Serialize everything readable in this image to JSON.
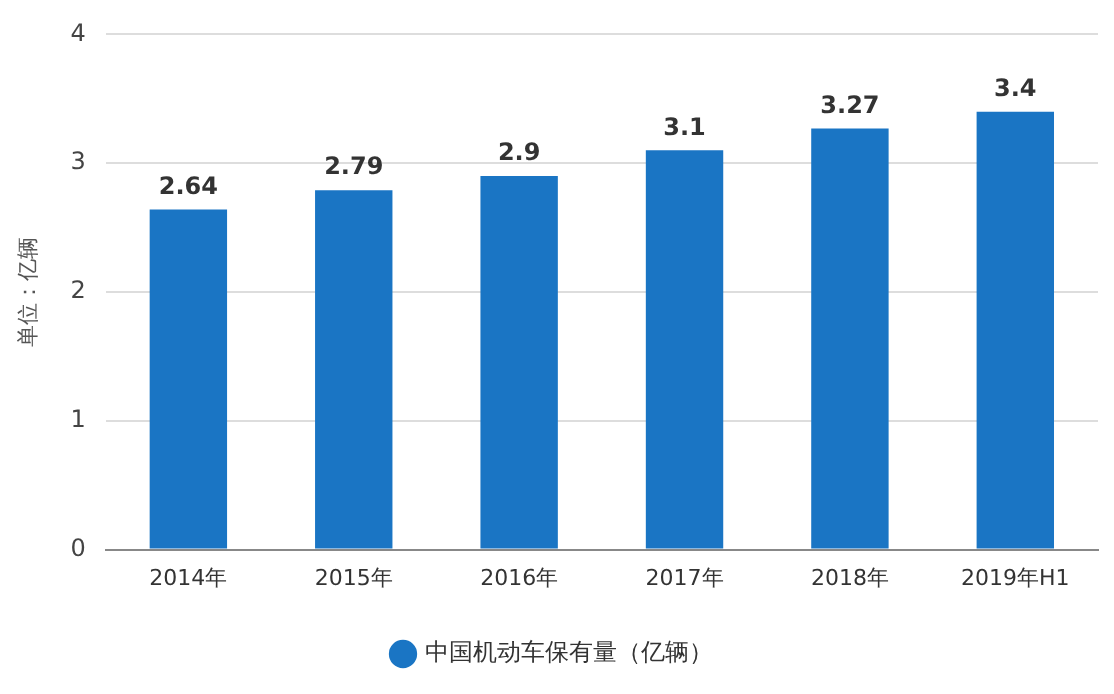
{
  "chart_data": {
    "type": "bar",
    "ylabel": "单位：亿辆",
    "categories": [
      "2014年",
      "2015年",
      "2016年",
      "2017年",
      "2018年",
      "2019年H1"
    ],
    "series": [
      {
        "name": "中国机动车保有量（亿辆）",
        "color": "#1a75c4",
        "values": [
          2.64,
          2.79,
          2.9,
          3.1,
          3.27,
          3.4
        ]
      }
    ],
    "ylim": [
      0,
      4
    ],
    "yticks": [
      0,
      1,
      2,
      3,
      4
    ],
    "grid": "y",
    "legend": "bottom",
    "data_labels": true
  }
}
